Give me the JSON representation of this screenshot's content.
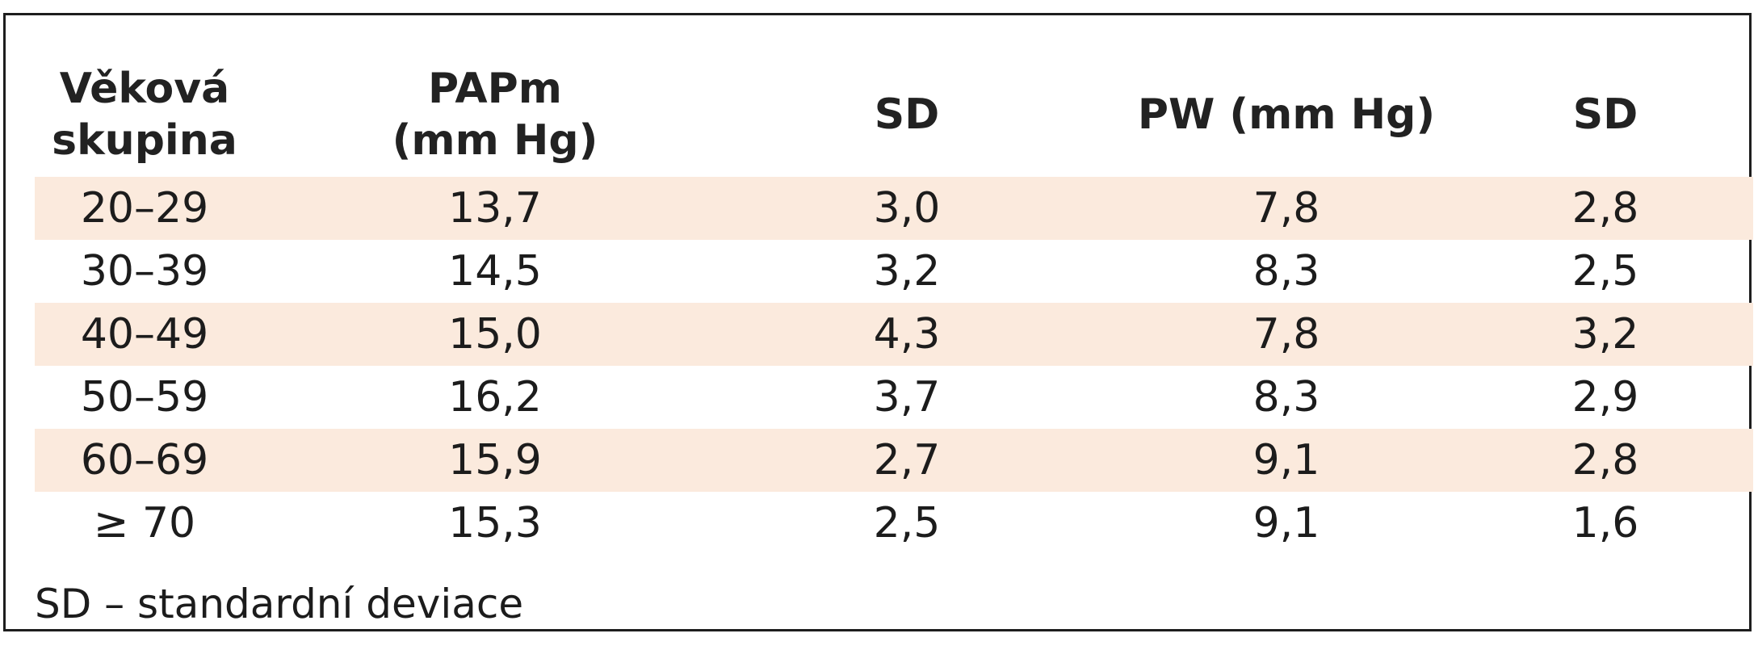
{
  "table": {
    "headers": [
      [
        "Věková",
        "skupina"
      ],
      [
        "PAPm",
        "(mm Hg)"
      ],
      [
        "SD"
      ],
      [
        "PW (mm Hg)"
      ],
      [
        "SD"
      ]
    ],
    "rows": [
      [
        "20–29",
        "13,7",
        "3,0",
        "7,8",
        "2,8"
      ],
      [
        "30–39",
        "14,5",
        "3,2",
        "8,3",
        "2,5"
      ],
      [
        "40–49",
        "15,0",
        "4,3",
        "7,8",
        "3,2"
      ],
      [
        "50–59",
        "16,2",
        "3,7",
        "8,3",
        "2,9"
      ],
      [
        "60–69",
        "15,9",
        "2,7",
        "9,1",
        "2,8"
      ],
      [
        "≥ 70",
        "15,3",
        "2,5",
        "9,1",
        "1,6"
      ]
    ],
    "footnote": "SD – standardní deviace"
  },
  "colors": {
    "shaded_row": "#fbeadd",
    "border": "#1e1e1e",
    "text": "#1c1c1c"
  }
}
